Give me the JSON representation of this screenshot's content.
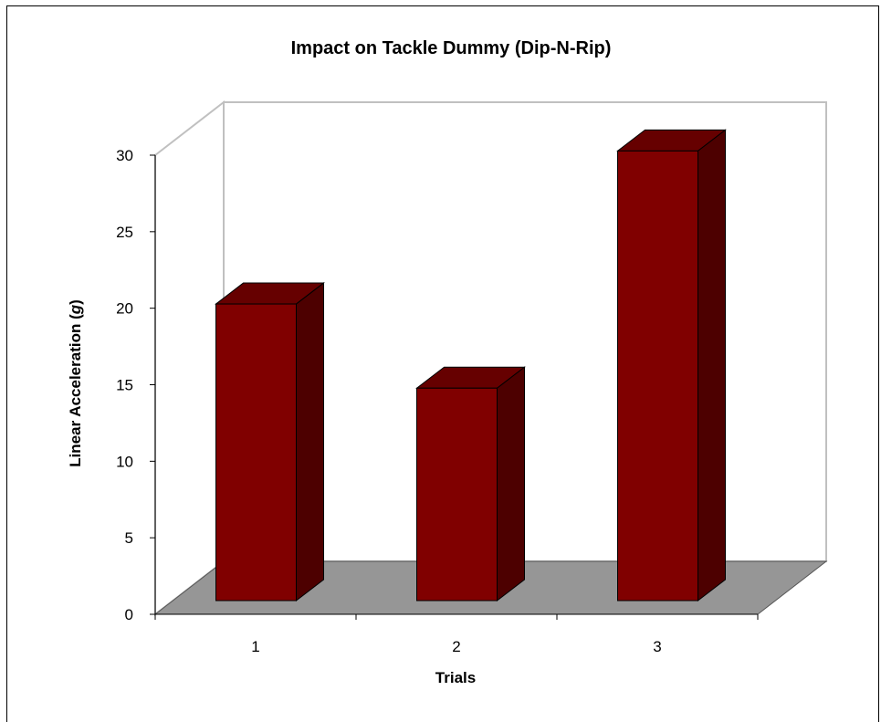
{
  "chart_data": {
    "type": "bar",
    "title": "Impact on Tackle Dummy (Dip-N-Rip)",
    "xlabel": "Trials",
    "ylabel": {
      "prefix": "Linear Acceleration (",
      "italic": "g",
      "suffix": ")"
    },
    "categories": [
      "1",
      "2",
      "3"
    ],
    "values": [
      19.5,
      14,
      29.5
    ],
    "ylim": [
      0,
      30
    ],
    "yticks": [
      0,
      5,
      10,
      15,
      20,
      25,
      30
    ],
    "grid": false,
    "legend": "none",
    "style": "3d-column",
    "colors": {
      "bar_front": "#800000",
      "bar_top": "#660000",
      "bar_side": "#4d0000",
      "floor": "#969696",
      "walls": "#ffffff",
      "wall_edges": "#c0c0c0"
    }
  }
}
